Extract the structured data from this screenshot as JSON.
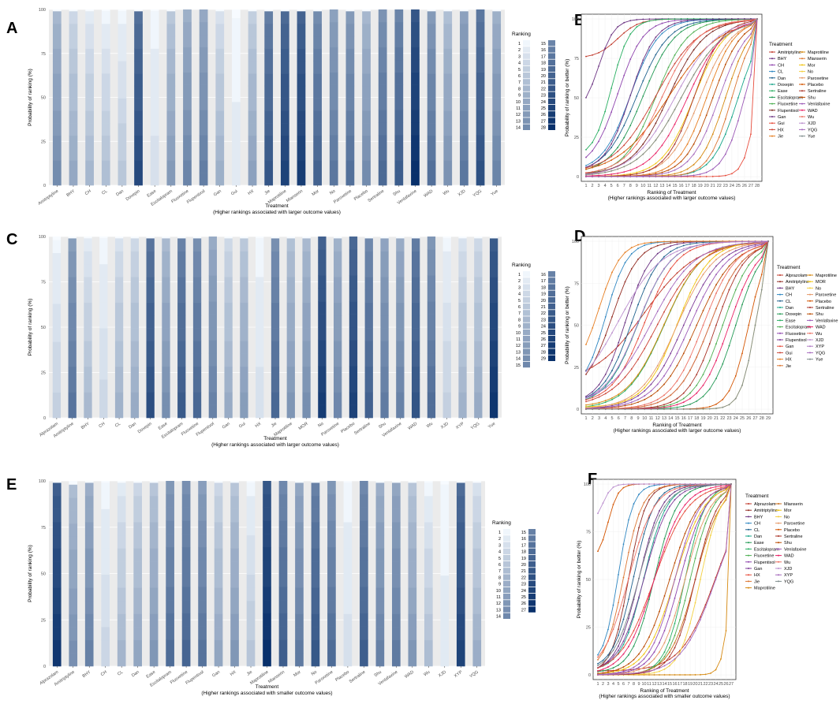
{
  "chart_data": [
    {
      "panel": "A",
      "type": "bar",
      "title": "",
      "xlabel": "Treatment",
      "xlabel2": "(Higher rankings associated with larger outcome values)",
      "ylabel": "Probability of ranking (%)",
      "ylim": [
        0,
        100
      ],
      "yticks": [
        "0",
        "25",
        "50",
        "75",
        "100"
      ],
      "legend_title": "Ranking",
      "n_ranks": 28,
      "categories": [
        "Amitriptyline",
        "BHY",
        "CH",
        "CL",
        "Dan",
        "Doxepin",
        "Ease",
        "Escitalopram",
        "Fluoxetine",
        "Flupentixol",
        "Gan",
        "Gui",
        "HX",
        "Jie",
        "Maprotiline",
        "Mianserin",
        "Mor",
        "No",
        "Paroxetine",
        "Placebo",
        "Sertraline",
        "Shu",
        "Venlafaxine",
        "WAD",
        "Wu",
        "XJD",
        "YQG",
        "Yue"
      ],
      "dominant_rank": [
        14,
        10,
        8,
        7,
        6,
        24,
        3,
        12,
        15,
        16,
        9,
        2,
        11,
        22,
        25,
        26,
        20,
        17,
        18,
        14,
        19,
        21,
        28,
        18,
        13,
        17,
        23,
        15
      ],
      "height": [
        99,
        99,
        99,
        99,
        99,
        99,
        99,
        99,
        100,
        100,
        99,
        95,
        99,
        99,
        99,
        99,
        99,
        100,
        99,
        99,
        100,
        100,
        100,
        99,
        99,
        99,
        100,
        99
      ]
    },
    {
      "panel": "B",
      "type": "line",
      "xlabel": "Ranking of Treatment",
      "xlabel2": "(Higher rankings associated with larger outcome values)",
      "ylabel": "Probability of ranking or better (%)",
      "xlim": [
        1,
        28
      ],
      "ylim": [
        0,
        100
      ],
      "yticks": [
        "0",
        "25",
        "50",
        "75",
        "100"
      ],
      "legend_title": "Treatment",
      "series_names": [
        "Amitriptyline",
        "BHY",
        "CH",
        "CL",
        "Dan",
        "Doxepin",
        "Ease",
        "Escitalopram",
        "Fluoxetine",
        "Flupentixol",
        "Gan",
        "Gui",
        "HX",
        "Jie",
        "Maprotiline",
        "Mianserin",
        "Mor",
        "No",
        "Paroxetine",
        "Placebo",
        "Sertraline",
        "Shu",
        "Venlafaxine",
        "WAD",
        "Wu",
        "XJD",
        "YQG",
        "Yue"
      ],
      "series_colors": [
        "#c0392b",
        "#6c3483",
        "#8e44ad",
        "#2e86c1",
        "#1f618d",
        "#17a589",
        "#27ae60",
        "#229954",
        "#4caf50",
        "#7b241c",
        "#6c3483",
        "#e74c3c",
        "#cb4335",
        "#e67e22",
        "#d68910",
        "#dc7633",
        "#f1c40f",
        "#f4d03f",
        "#e59866",
        "#d35400",
        "#a93226",
        "#ba4a00",
        "#9b59b6",
        "#e91e63",
        "#ec7063",
        "#bb8fce",
        "#a569bd",
        "#7f8c8d"
      ],
      "midpoints": [
        6,
        3,
        6,
        8,
        9,
        25,
        5,
        10,
        12,
        14,
        8,
        28,
        12,
        20,
        23,
        24,
        18,
        16,
        19,
        14,
        18,
        21,
        26,
        17,
        13,
        15,
        22,
        16
      ],
      "curve_start": [
        75,
        40,
        5,
        3,
        2,
        0,
        12,
        2,
        1,
        1,
        3,
        0,
        2,
        0,
        0,
        0,
        0,
        0,
        0,
        1,
        0,
        0,
        0,
        0,
        1,
        0,
        0,
        0
      ],
      "steepness": [
        0.6,
        0.8,
        0.5,
        0.45,
        0.4,
        0.5,
        0.7,
        0.4,
        0.4,
        0.35,
        0.5,
        1.0,
        0.3,
        0.45,
        0.5,
        0.55,
        0.4,
        0.3,
        0.4,
        0.25,
        0.45,
        0.45,
        0.6,
        0.35,
        0.35,
        0.3,
        0.45,
        0.3
      ]
    },
    {
      "panel": "C",
      "type": "bar",
      "xlabel": "Treatment",
      "xlabel2": "(Higher rankings associated with larger outcome values)",
      "ylabel": "Probability of ranking (%)",
      "ylim": [
        0,
        100
      ],
      "yticks": [
        "0",
        "25",
        "50",
        "75",
        "100"
      ],
      "legend_title": "Ranking",
      "n_ranks": 29,
      "categories": [
        "Alprazolam",
        "Amitriptyline",
        "BHY",
        "CH",
        "CL",
        "Dan",
        "Doxepin",
        "Ease",
        "Escitalopram",
        "Fluoxetine",
        "Flupentixol",
        "Gan",
        "Gui",
        "HX",
        "Jie",
        "Maprotiline",
        "MOR",
        "No",
        "Paroxetine",
        "Placebo",
        "Sertraline",
        "Shu",
        "Venlafaxine",
        "WAD",
        "Wu",
        "XJD",
        "XYP",
        "YQG",
        "Yue"
      ],
      "dominant_rank": [
        5,
        18,
        8,
        4,
        9,
        10,
        24,
        14,
        22,
        20,
        16,
        10,
        12,
        3,
        20,
        13,
        14,
        27,
        15,
        26,
        21,
        17,
        16,
        23,
        19,
        5,
        9,
        10,
        28
      ],
      "height": [
        98,
        99,
        99,
        99,
        99,
        99,
        99,
        99,
        99,
        99,
        100,
        99,
        99,
        99,
        99,
        99,
        99,
        100,
        99,
        100,
        99,
        99,
        99,
        99,
        100,
        99,
        99,
        99,
        99
      ]
    },
    {
      "panel": "D",
      "type": "line",
      "xlabel": "Ranking of Treatment",
      "xlabel2": "(Higher rankings associated with larger outcome values)",
      "ylabel": "Probability of ranking or better (%)",
      "xlim": [
        1,
        29
      ],
      "ylim": [
        0,
        100
      ],
      "yticks": [
        "0",
        "25",
        "50",
        "75",
        "100"
      ],
      "legend_title": "Treatment",
      "series_names": [
        "Alprazolam",
        "Amitriptyline",
        "BHY",
        "CH",
        "CL",
        "Dan",
        "Doxepin",
        "Ease",
        "Escitalopram",
        "Fluoxetine",
        "Flupentixol",
        "Gan",
        "Gui",
        "HX",
        "Jie",
        "Maprotiline",
        "MOR",
        "No",
        "Paroxetine",
        "Placebo",
        "Sertraline",
        "Shu",
        "Venlafaxine",
        "WAD",
        "Wu",
        "XJD",
        "XYP",
        "YQG",
        "Yue"
      ],
      "series_colors": [
        "#c0392b",
        "#922b21",
        "#6c3483",
        "#2e86c1",
        "#1f618d",
        "#17a589",
        "#229954",
        "#27ae60",
        "#4caf50",
        "#8e44ad",
        "#7d3c98",
        "#e74c3c",
        "#cb4335",
        "#e67e22",
        "#dc7633",
        "#d68910",
        "#f1c40f",
        "#f4d03f",
        "#e59866",
        "#d35400",
        "#a93226",
        "#ba4a00",
        "#9b59b6",
        "#e91e63",
        "#ec7063",
        "#bb8fce",
        "#af7ac5",
        "#a569bd",
        "#7f8c8d"
      ],
      "midpoints": [
        10,
        5,
        7,
        4,
        8,
        9,
        24,
        13,
        22,
        20,
        16,
        10,
        12,
        3,
        20,
        13,
        15,
        27,
        15,
        26,
        21,
        18,
        17,
        23,
        19,
        6,
        9,
        11,
        27
      ],
      "curve_start": [
        15,
        10,
        3,
        10,
        3,
        2,
        0,
        0,
        0,
        0,
        0,
        3,
        1,
        20,
        0,
        1,
        1,
        0,
        0,
        0,
        0,
        0,
        0,
        0,
        0,
        5,
        3,
        2,
        0
      ],
      "steepness": [
        0.25,
        0.5,
        0.5,
        0.6,
        0.45,
        0.4,
        0.5,
        0.35,
        0.45,
        0.4,
        0.35,
        0.4,
        0.3,
        0.6,
        0.4,
        0.35,
        0.4,
        0.9,
        0.35,
        0.7,
        0.45,
        0.35,
        0.35,
        0.45,
        0.4,
        0.3,
        0.4,
        0.3,
        0.9
      ]
    },
    {
      "panel": "E",
      "type": "bar",
      "xlabel": "Treatment",
      "xlabel2": "(Higher rankings associated with smaller outcome values)",
      "ylabel": "Probability of ranking (%)",
      "ylim": [
        0,
        100
      ],
      "yticks": [
        "0",
        "25",
        "50",
        "75",
        "100"
      ],
      "legend_title": "Ranking",
      "n_ranks": 27,
      "categories": [
        "Alprazolam",
        "Amitriptyline",
        "BHY",
        "CH",
        "CL",
        "Dan",
        "Ease",
        "Escitalopram",
        "Fluoxetine",
        "Flupentixol",
        "Gan",
        "HX",
        "Jie",
        "Maprotiline",
        "Mianserin",
        "Mor",
        "No",
        "Paroxetine",
        "Placebo",
        "Sertraline",
        "Shu",
        "Venlafaxine",
        "WAD",
        "Wu",
        "XJD",
        "XYP",
        "YQG"
      ],
      "dominant_rank": [
        26,
        13,
        15,
        4,
        8,
        10,
        12,
        18,
        19,
        17,
        10,
        12,
        6,
        27,
        20,
        16,
        21,
        18,
        3,
        20,
        15,
        16,
        12,
        7,
        2,
        24,
        9
      ],
      "height": [
        99,
        98,
        99,
        99,
        99,
        99,
        99,
        100,
        100,
        100,
        99,
        99,
        99,
        100,
        100,
        99,
        99,
        100,
        99,
        100,
        99,
        99,
        99,
        99,
        98,
        99,
        99
      ]
    },
    {
      "panel": "F",
      "type": "line",
      "xlabel": "Ranking of Treatment",
      "xlabel2": "(Higher rankings associated with smaller outcome values)",
      "ylabel": "Probability of ranking or better (%)",
      "xlim": [
        1,
        27
      ],
      "ylim": [
        0,
        100
      ],
      "yticks": [
        "0",
        "25",
        "50",
        "75",
        "100"
      ],
      "legend_title": "Treatment",
      "series_names": [
        "Alprazolam",
        "Amitriptyline",
        "BHY",
        "CH",
        "CL",
        "Dan",
        "Ease",
        "Escitalopram",
        "Fluoxetine",
        "Flupentixol",
        "Gan",
        "HX",
        "Jie",
        "Maprotiline",
        "Mianserin",
        "Mor",
        "No",
        "Paroxetine",
        "Placebo",
        "Sertraline",
        "Shu",
        "Venlafaxine",
        "WAD",
        "Wu",
        "XJD",
        "XYP",
        "YQG"
      ],
      "series_colors": [
        "#c0392b",
        "#922b21",
        "#6c3483",
        "#2e86c1",
        "#1f618d",
        "#17a589",
        "#229954",
        "#27ae60",
        "#4caf50",
        "#8e44ad",
        "#7d3c98",
        "#e74c3c",
        "#dc7633",
        "#d68910",
        "#ca6f1e",
        "#f1c40f",
        "#f4d03f",
        "#e59866",
        "#d35400",
        "#a93226",
        "#ba4a00",
        "#9b59b6",
        "#e91e63",
        "#ec7063",
        "#bb8fce",
        "#a569bd",
        "#7f8c8d"
      ],
      "midpoints": [
        24,
        7,
        9,
        5,
        8,
        10,
        12,
        18,
        19,
        17,
        10,
        12,
        6,
        27,
        20,
        16,
        21,
        18,
        3,
        20,
        15,
        16,
        12,
        7,
        2,
        24,
        9
      ],
      "curve_start": [
        2,
        1,
        1,
        5,
        3,
        2,
        1,
        0,
        0,
        0,
        1,
        0,
        2,
        0,
        0,
        0,
        0,
        0,
        60,
        0,
        0,
        0,
        0,
        1,
        80,
        0,
        1
      ],
      "steepness": [
        0.3,
        0.6,
        0.45,
        0.7,
        0.5,
        0.45,
        0.45,
        0.5,
        0.45,
        0.4,
        0.4,
        0.3,
        0.55,
        1.2,
        0.4,
        0.35,
        0.5,
        0.4,
        1.0,
        0.45,
        0.35,
        0.4,
        0.35,
        0.4,
        1.2,
        0.3,
        0.4
      ]
    }
  ]
}
